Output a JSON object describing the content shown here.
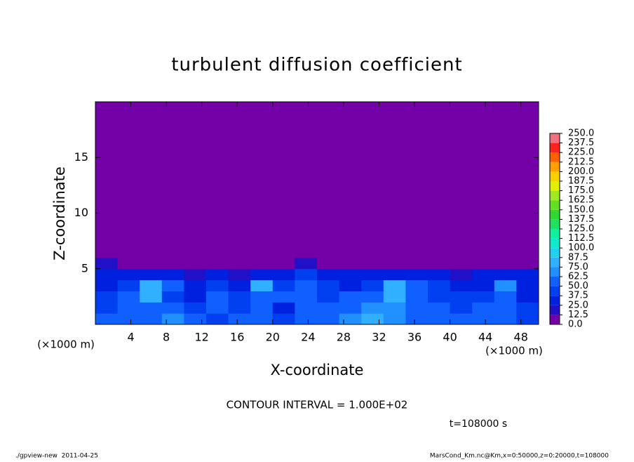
{
  "chart_data": {
    "type": "heatmap",
    "title": "turbulent diffusion coefficient",
    "xlabel": "X-coordinate",
    "ylabel": "Z-coordinate",
    "xunit": "(×1000 m)",
    "yunit": "(×1000 m)",
    "xlim": [
      0,
      50
    ],
    "ylim": [
      0,
      20
    ],
    "xticks": [
      4,
      8,
      12,
      16,
      20,
      24,
      28,
      32,
      36,
      40,
      44,
      48
    ],
    "yticks": [
      5,
      10,
      15
    ],
    "x_edges": [
      0,
      2.5,
      5,
      7.5,
      10,
      12.5,
      15,
      17.5,
      20,
      22.5,
      25,
      27.5,
      30,
      32.5,
      35,
      37.5,
      40,
      42.5,
      45,
      47.5,
      50
    ],
    "y_edges": [
      0,
      1,
      2,
      3,
      4,
      5,
      6,
      7,
      20
    ],
    "values": [
      [
        50,
        60,
        55,
        70,
        60,
        45,
        55,
        50,
        45,
        60,
        55,
        65,
        75,
        70,
        60,
        55,
        60,
        55,
        50,
        45
      ],
      [
        45,
        55,
        60,
        50,
        40,
        50,
        45,
        55,
        35,
        60,
        50,
        55,
        70,
        65,
        55,
        50,
        45,
        50,
        55,
        40
      ],
      [
        40,
        50,
        75,
        45,
        35,
        50,
        40,
        60,
        50,
        55,
        45,
        50,
        60,
        80,
        60,
        45,
        40,
        40,
        60,
        35
      ],
      [
        35,
        40,
        80,
        50,
        30,
        40,
        35,
        75,
        45,
        50,
        40,
        35,
        45,
        85,
        50,
        40,
        30,
        35,
        70,
        30
      ],
      [
        25,
        30,
        30,
        25,
        20,
        25,
        20,
        30,
        35,
        45,
        25,
        30,
        25,
        30,
        35,
        30,
        20,
        25,
        30,
        25
      ],
      [
        15,
        10,
        5,
        5,
        5,
        5,
        5,
        5,
        5,
        20,
        10,
        5,
        5,
        5,
        5,
        5,
        5,
        5,
        5,
        10
      ],
      [
        0,
        0,
        0,
        0,
        0,
        0,
        5,
        0,
        0,
        5,
        0,
        0,
        0,
        0,
        0,
        0,
        0,
        0,
        0,
        0
      ],
      [
        0,
        0,
        0,
        0,
        0,
        0,
        0,
        0,
        0,
        0,
        0,
        0,
        0,
        0,
        0,
        0,
        0,
        0,
        0,
        0
      ]
    ],
    "levels": [
      {
        "value": 0,
        "label": "0.0"
      },
      12.5,
      {
        "value": 25,
        "label": "25.0"
      },
      37.5,
      {
        "value": 50,
        "label": "50.0"
      },
      62.5,
      {
        "value": 75,
        "label": "75.0"
      },
      87.5,
      {
        "value": 100,
        "label": "100.0"
      },
      112.5,
      {
        "value": 125,
        "label": "125.0"
      },
      137.5,
      {
        "value": 150,
        "label": "150.0"
      },
      162.5,
      {
        "value": 175,
        "label": "175.0"
      },
      187.5,
      {
        "value": 200,
        "label": "200.0"
      },
      212.5,
      {
        "value": 225,
        "label": "225.0"
      },
      237.5,
      {
        "value": 250,
        "label": "250.0"
      }
    ],
    "colors": [
      "#7400a8",
      "#2010c8",
      "#0020e0",
      "#0040f0",
      "#1060ff",
      "#2090ff",
      "#30b0ff",
      "#20d0f0",
      "#10e8d0",
      "#10f0a0",
      "#20e060",
      "#30d830",
      "#60e020",
      "#a0e820",
      "#e0f000",
      "#f8d000",
      "#ffa000",
      "#ff6000",
      "#ff2020",
      "#f07080"
    ],
    "contour_note": "CONTOUR INTERVAL = 1.000E+02",
    "time_note": "t=108000 s",
    "footer_left": "./gpview-new  2011-04-25",
    "footer_right": "MarsCond_Km.nc@Km,x=0:50000,z=0:20000,t=108000"
  }
}
